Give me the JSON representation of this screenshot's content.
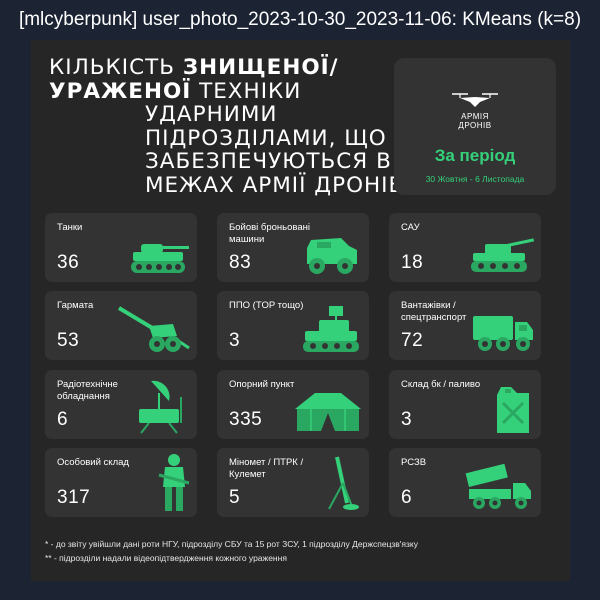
{
  "window": {
    "title": "[mlcyberpunk] user_photo_2023-10-30_2023-11-06: KMeans (k=8)"
  },
  "headline": {
    "line1_regular": "Кількість",
    "line1_bold": "знищеної/",
    "line2_bold": "ураженої",
    "line2_regular": "техніки",
    "line3": "ударними",
    "line4": "підрозділами, що",
    "line5": "забезпечуються в",
    "line6": "межах Армії Дронів"
  },
  "brand": {
    "logo_line1": "АРМІЯ",
    "logo_line2": "ДРОНІВ",
    "period": "За період",
    "dates": "30 Жовтня - 6 Листопада"
  },
  "colors": {
    "accent": "#34d07a",
    "background": "#262626",
    "card": "#333333"
  },
  "cards": [
    {
      "label": "Танки",
      "value": "36",
      "icon": "tank-icon"
    },
    {
      "label": "Бойові броньовані машини",
      "value": "83",
      "icon": "armored-vehicle-icon"
    },
    {
      "label": "САУ",
      "value": "18",
      "icon": "self-propelled-gun-icon"
    },
    {
      "label": "Гармата",
      "value": "53",
      "icon": "cannon-icon"
    },
    {
      "label": "ППО (TOP тощо)",
      "value": "3",
      "icon": "air-defense-icon"
    },
    {
      "label": "Вантажівки / спецтранспорт",
      "value": "72",
      "icon": "truck-icon"
    },
    {
      "label": "Радіотехнічне обладнання",
      "value": "6",
      "icon": "radar-icon"
    },
    {
      "label": "Опорний пункт",
      "value": "335",
      "icon": "tent-icon"
    },
    {
      "label": "Склад бк / паливо",
      "value": "3",
      "icon": "fuel-can-icon"
    },
    {
      "label": "Особовий склад",
      "value": "317",
      "icon": "soldier-icon"
    },
    {
      "label": "Міномет / ПТРК /Кулемет",
      "value": "5",
      "icon": "mortar-icon"
    },
    {
      "label": "РСЗВ",
      "value": "6",
      "icon": "rocket-launcher-icon"
    }
  ],
  "footnotes": {
    "note1": "* - до звіту увійшли дані роти НГУ, підрозділу СБУ та 15 рот ЗСУ, 1 підрозділу Держспецзв'язку",
    "note2": "** - підрозділи надали відеопідтвердження кожного ураження"
  }
}
